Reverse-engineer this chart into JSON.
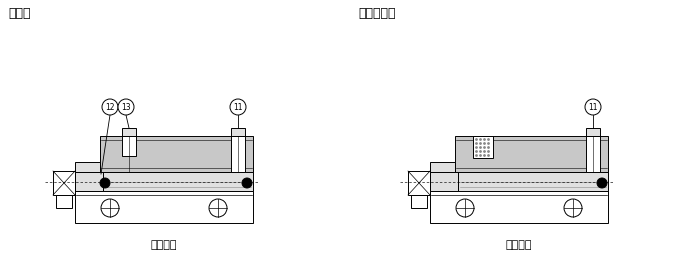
{
  "title_left": "複動形",
  "title_right": "単動押出形",
  "label_bottom_left": "磁石なし",
  "label_bottom_right": "磁石なし",
  "bg_color": "#ffffff",
  "line_color": "#000000",
  "gray_body": "#c8c8c8",
  "gray_light": "#e0e0e0",
  "gray_mid": "#b0b0b0",
  "fig_width": 6.96,
  "fig_height": 2.65,
  "dpi": 100
}
